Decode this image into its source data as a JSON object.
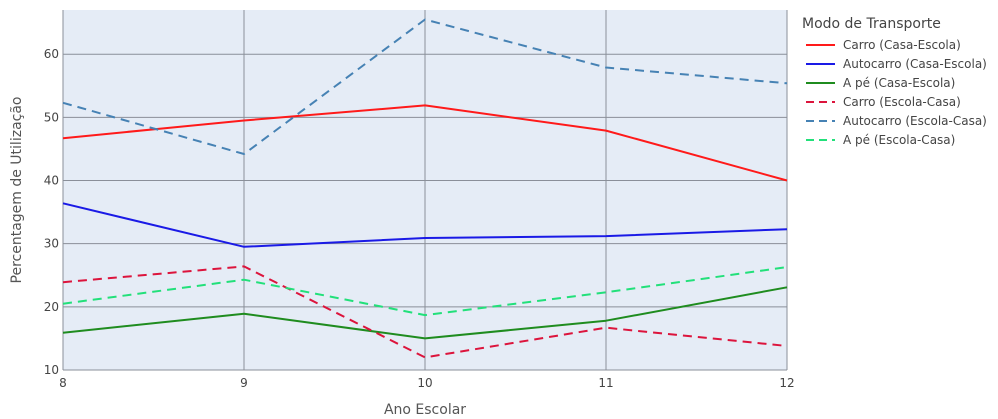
{
  "chart_data": {
    "type": "line",
    "xlabel": "Ano Escolar",
    "ylabel": "Percentagem de Utilização",
    "x": [
      8,
      9,
      10,
      11,
      12
    ],
    "xlim": [
      8,
      12
    ],
    "ylim": [
      10,
      67
    ],
    "xticks": [
      8,
      9,
      10,
      11,
      12
    ],
    "yticks": [
      10,
      20,
      30,
      40,
      50,
      60
    ],
    "grid": true,
    "legend_title": "Modo de Transporte",
    "legend_position": "right",
    "series": [
      {
        "name": "Carro (Casa-Escola)",
        "values": [
          46.7,
          49.5,
          51.9,
          47.9,
          40.0
        ],
        "color": "#ff1a1a",
        "dash": "solid"
      },
      {
        "name": "Autocarro (Casa-Escola)",
        "values": [
          36.4,
          29.5,
          30.9,
          31.2,
          32.3
        ],
        "color": "#1a1ae6",
        "dash": "solid"
      },
      {
        "name": "A pé (Casa-Escola)",
        "values": [
          15.9,
          18.9,
          15.0,
          17.8,
          23.1
        ],
        "color": "#1f8c1f",
        "dash": "solid"
      },
      {
        "name": "Carro (Escola-Casa)",
        "values": [
          23.9,
          26.4,
          12.0,
          16.7,
          13.8
        ],
        "color": "#dc143c",
        "dash": "dash"
      },
      {
        "name": "Autocarro (Escola-Casa)",
        "values": [
          52.3,
          44.2,
          65.5,
          57.9,
          55.4
        ],
        "color": "#4682b4",
        "dash": "dash"
      },
      {
        "name": "A pé (Escola-Casa)",
        "values": [
          20.5,
          24.3,
          18.7,
          22.3,
          26.3
        ],
        "color": "#22e07a",
        "dash": "dash"
      }
    ]
  }
}
